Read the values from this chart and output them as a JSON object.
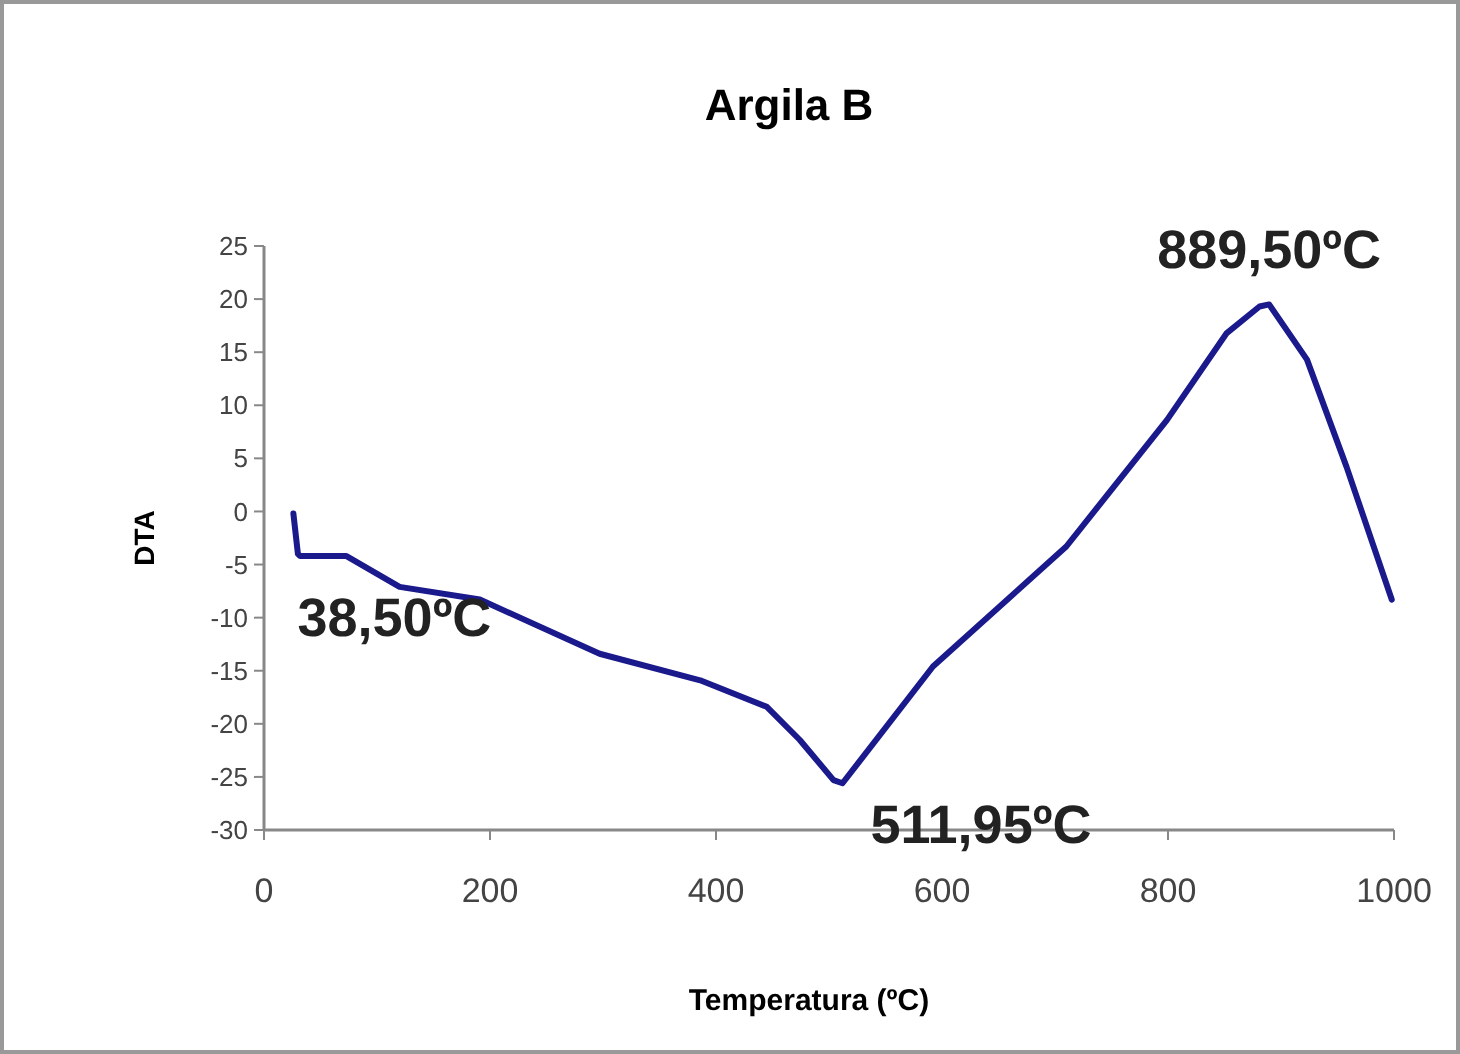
{
  "chart_data": {
    "type": "line",
    "title": "Argila B",
    "xlabel": "Temperatura (ºC)",
    "ylabel": "DTA",
    "x": [
      26,
      30,
      32,
      73,
      120,
      191,
      297,
      386,
      445,
      474,
      504,
      511.95,
      592,
      710,
      799,
      852,
      881,
      889.5,
      923,
      958,
      998
    ],
    "series": [
      {
        "color": "#1a1a8c",
        "values": [
          -0.2,
          -4,
          -4.2,
          -4.2,
          -7.1,
          -8.3,
          -13.4,
          -15.9,
          -18.4,
          -21.5,
          -25.3,
          -25.6,
          -14.6,
          -3.3,
          8.6,
          16.8,
          19.3,
          19.5,
          14.3,
          4.2,
          -8.3
        ]
      }
    ],
    "xlim": [
      0,
      1000
    ],
    "xticks": [
      0,
      200,
      400,
      600,
      800,
      1000
    ],
    "ylim": [
      -30,
      25
    ],
    "yticks": [
      -30,
      -25,
      -20,
      -15,
      -10,
      -5,
      0,
      5,
      10,
      15,
      20,
      25
    ],
    "grid": false,
    "marker": "none",
    "line_style": "solid",
    "annotations": [
      {
        "text": "38,50ºC",
        "x": 38.5,
        "y": -4.2
      },
      {
        "text": "511,95ºC",
        "x": 511.95,
        "y": -25.6
      },
      {
        "text": "889,50ºC",
        "x": 889.5,
        "y": 19.5
      }
    ]
  }
}
